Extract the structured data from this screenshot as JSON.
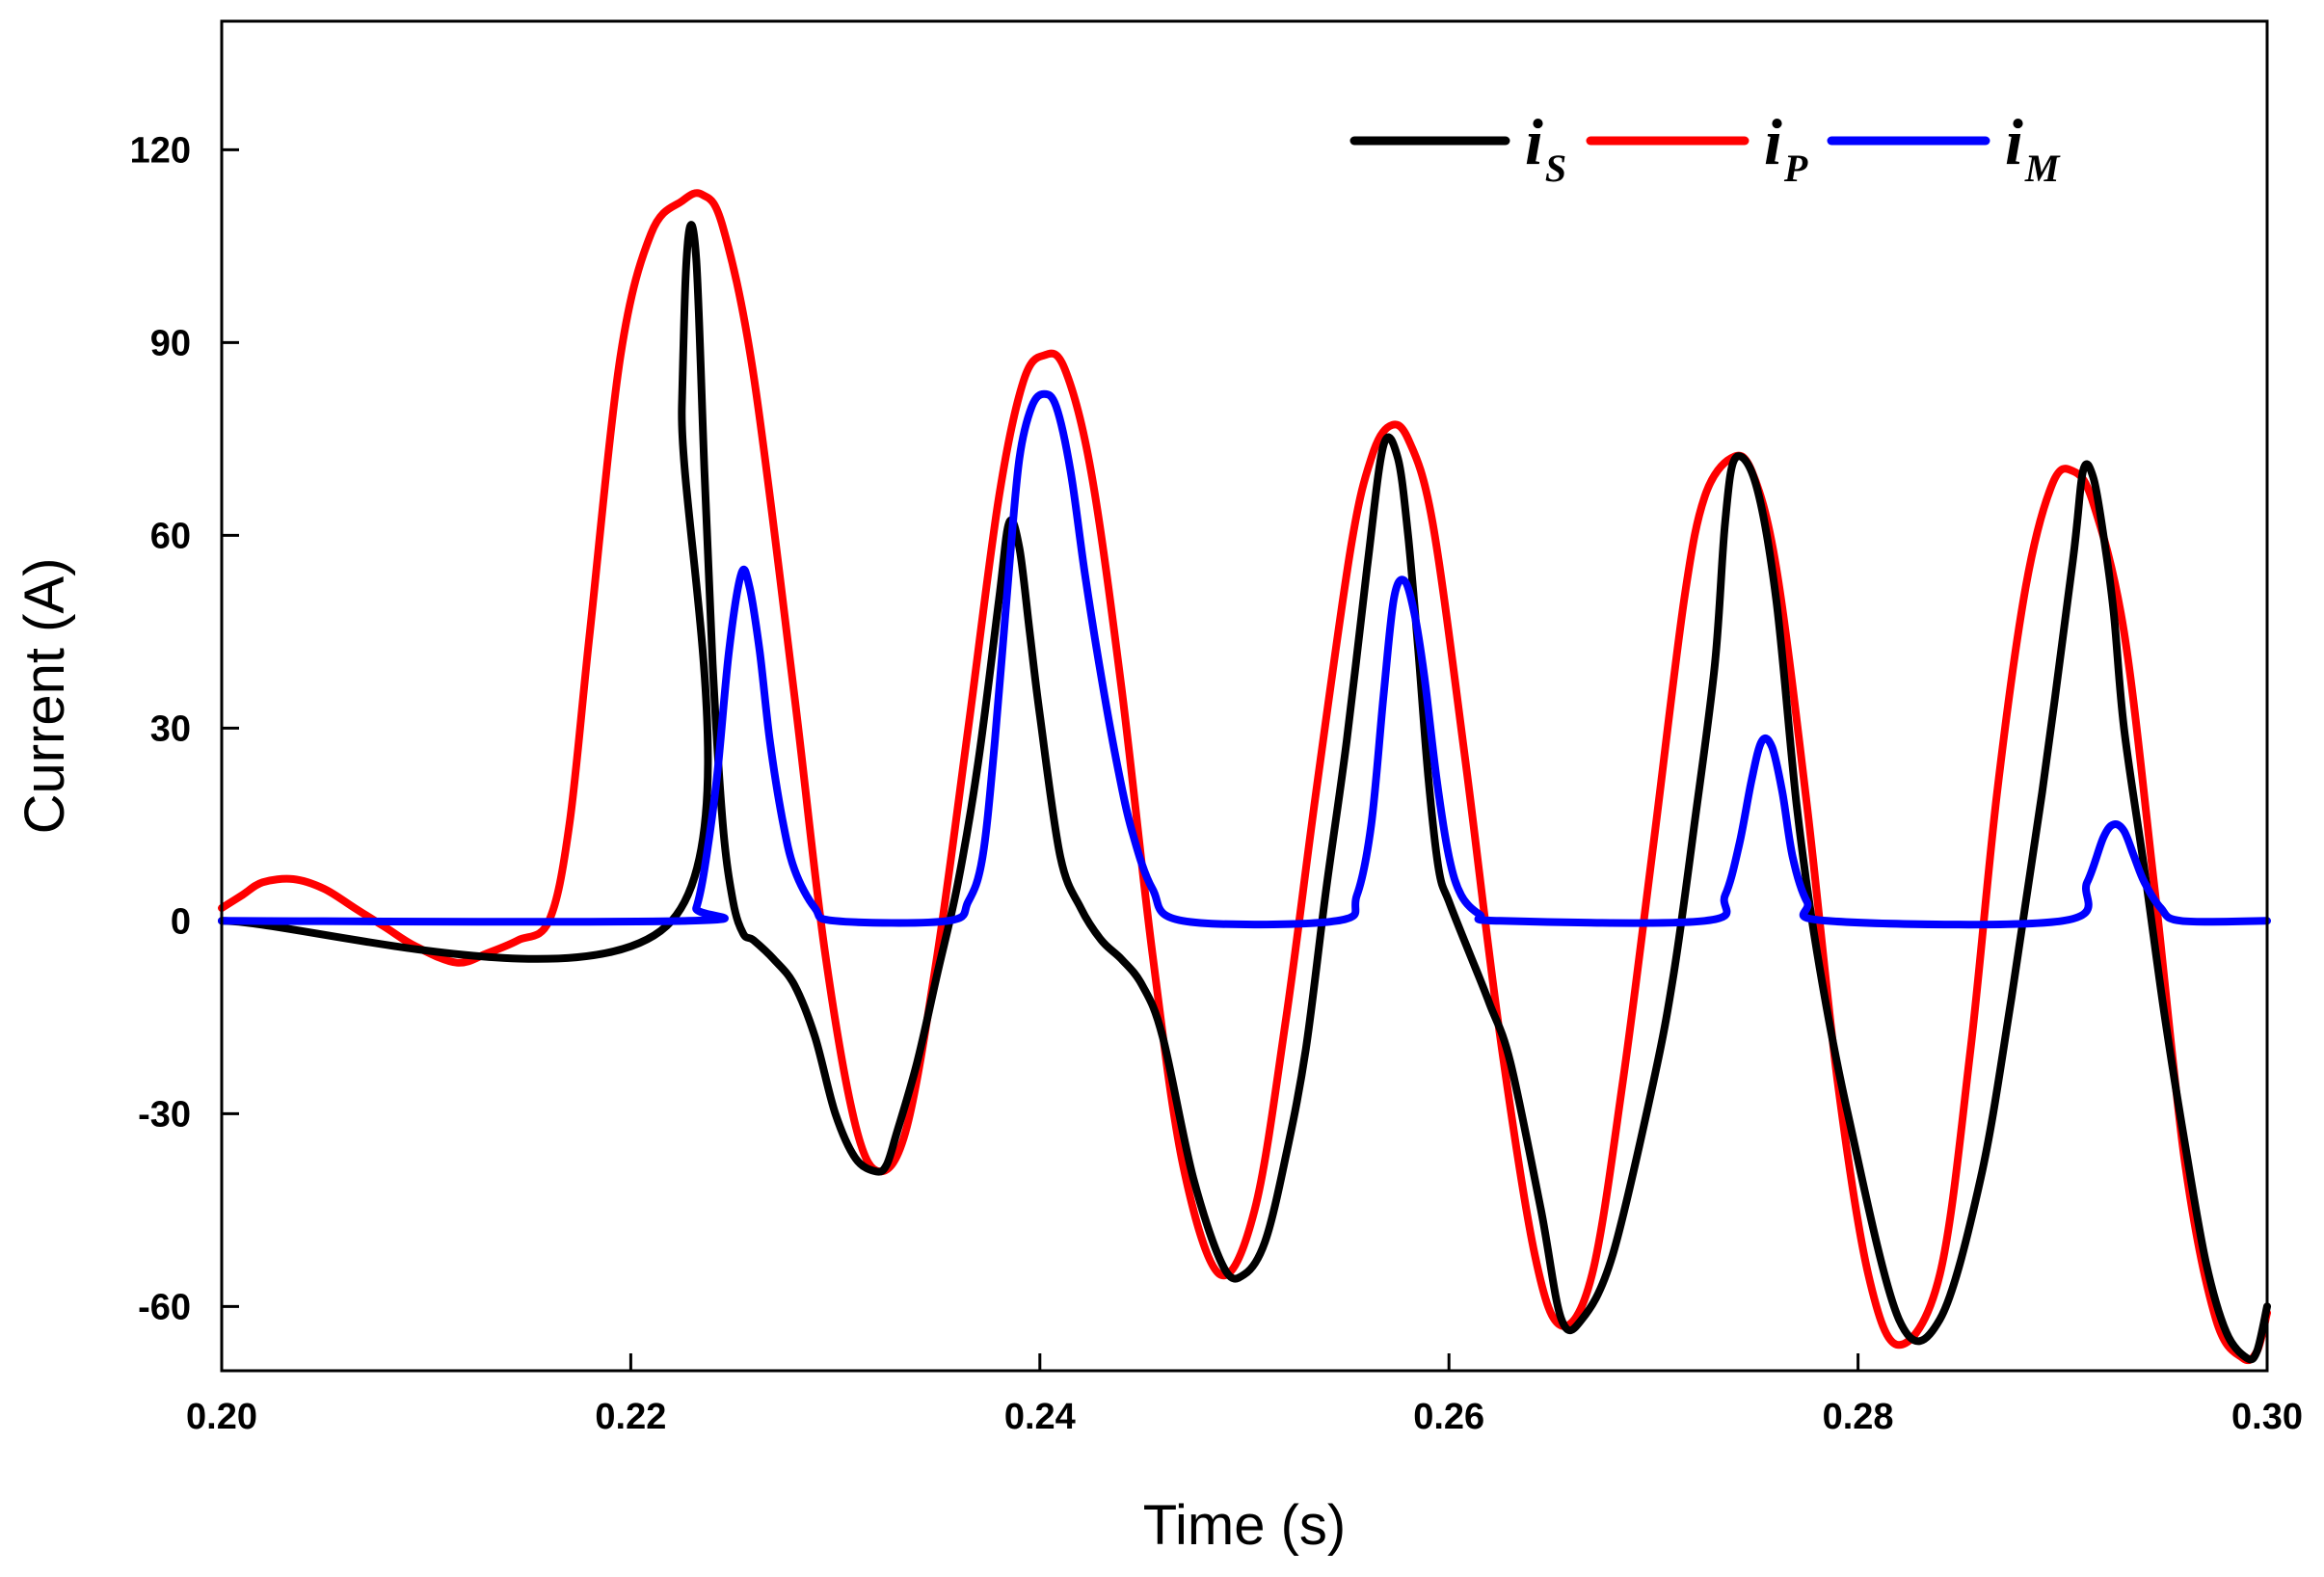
{
  "chart_data": {
    "type": "line",
    "title": "",
    "xlabel": "Time (s)",
    "ylabel": "Current (A)",
    "xlim": [
      0.2,
      0.3
    ],
    "ylim": [
      -70,
      140
    ],
    "xticks": [
      0.2,
      0.22,
      0.24,
      0.26,
      0.28,
      0.3
    ],
    "xtick_labels": [
      "0.20",
      "0.22",
      "0.24",
      "0.26",
      "0.28",
      "0.30"
    ],
    "yticks": [
      -60,
      -30,
      0,
      30,
      60,
      90,
      120
    ],
    "ytick_labels": [
      "-60",
      "-30",
      "0",
      "30",
      "60",
      "90",
      "120"
    ],
    "grid": false,
    "legend": "top-right",
    "series": [
      {
        "name": "iS",
        "label_main": "i",
        "label_sub": "S",
        "color": "#000000",
        "x": [
          0.2,
          0.222,
          0.2225,
          0.2228,
          0.2232,
          0.2236,
          0.224,
          0.2245,
          0.225,
          0.2255,
          0.226,
          0.227,
          0.228,
          0.229,
          0.23,
          0.231,
          0.232,
          0.2325,
          0.233,
          0.234,
          0.235,
          0.236,
          0.237,
          0.238,
          0.2385,
          0.239,
          0.2395,
          0.24,
          0.241,
          0.242,
          0.243,
          0.244,
          0.245,
          0.246,
          0.2475,
          0.249,
          0.25,
          0.251,
          0.252,
          0.253,
          0.254,
          0.255,
          0.256,
          0.2568,
          0.2575,
          0.258,
          0.2585,
          0.259,
          0.2595,
          0.26,
          0.261,
          0.262,
          0.263,
          0.2645,
          0.2655,
          0.2665,
          0.268,
          0.27,
          0.271,
          0.272,
          0.273,
          0.2735,
          0.274,
          0.275,
          0.276,
          0.277,
          0.278,
          0.2795,
          0.282,
          0.284,
          0.286,
          0.2875,
          0.289,
          0.2905,
          0.291,
          0.2915,
          0.292,
          0.2925,
          0.293,
          0.294,
          0.295,
          0.296,
          0.297,
          0.298,
          0.299,
          0.2995,
          0.3
        ],
        "y": [
          0,
          0,
          80,
          106,
          103,
          70,
          40,
          15,
          3,
          -2,
          -3,
          -6,
          -10,
          -18,
          -30,
          -37,
          -39,
          -38,
          -33,
          -22,
          -8,
          6,
          25,
          50,
          62,
          58,
          45,
          32,
          10,
          2,
          -3,
          -6,
          -10,
          -18,
          -40,
          -54,
          -55,
          -50,
          -37,
          -20,
          5,
          28,
          55,
          74,
          72,
          60,
          42,
          22,
          8,
          3,
          -5,
          -13,
          -22,
          -45,
          -62,
          -62,
          -52,
          -25,
          -8,
          15,
          40,
          62,
          72,
          68,
          50,
          18,
          -5,
          -30,
          -62,
          -62,
          -40,
          -12,
          20,
          56,
          70,
          69,
          60,
          48,
          30,
          8,
          -15,
          -35,
          -53,
          -64,
          -68,
          -67,
          -60
        ]
      },
      {
        "name": "iP",
        "label_main": "i",
        "label_sub": "P",
        "color": "#ff0000",
        "x": [
          0.2,
          0.201,
          0.202,
          0.2035,
          0.205,
          0.2065,
          0.208,
          0.2095,
          0.2115,
          0.213,
          0.2145,
          0.216,
          0.217,
          0.218,
          0.2195,
          0.221,
          0.2225,
          0.2235,
          0.2245,
          0.226,
          0.228,
          0.2295,
          0.231,
          0.2322,
          0.2335,
          0.235,
          0.2365,
          0.238,
          0.2392,
          0.2402,
          0.2412,
          0.2425,
          0.244,
          0.2455,
          0.247,
          0.2488,
          0.2505,
          0.252,
          0.2535,
          0.2552,
          0.2562,
          0.2571,
          0.258,
          0.2592,
          0.2608,
          0.2625,
          0.2642,
          0.2655,
          0.267,
          0.2685,
          0.27,
          0.2715,
          0.2725,
          0.2738,
          0.2748,
          0.276,
          0.2775,
          0.279,
          0.2805,
          0.282,
          0.284,
          0.2855,
          0.2868,
          0.2882,
          0.2895,
          0.2905,
          0.2915,
          0.293,
          0.2945,
          0.296,
          0.2975,
          0.2988,
          0.2995,
          0.3
        ],
        "y": [
          2,
          4,
          6,
          6.5,
          5,
          2,
          -1,
          -4,
          -6.5,
          -5,
          -3,
          0,
          15,
          45,
          88,
          107,
          112,
          113,
          108,
          85,
          35,
          -5,
          -32,
          -39,
          -32,
          -5,
          30,
          66,
          84,
          88,
          86,
          70,
          36,
          -5,
          -38,
          -55,
          -45,
          -16,
          20,
          58,
          72,
          77,
          75,
          62,
          25,
          -18,
          -52,
          -63,
          -55,
          -25,
          12,
          50,
          66,
          72,
          70,
          55,
          18,
          -25,
          -55,
          -66,
          -55,
          -20,
          20,
          52,
          68,
          70,
          65,
          45,
          5,
          -38,
          -62,
          -68,
          -67,
          -61
        ]
      },
      {
        "name": "iM",
        "label_main": "i",
        "label_sub": "M",
        "color": "#0000ff",
        "x": [
          0.2,
          0.2228,
          0.2232,
          0.2236,
          0.2242,
          0.2248,
          0.2254,
          0.2258,
          0.2263,
          0.2268,
          0.2274,
          0.228,
          0.229,
          0.23,
          0.2355,
          0.2365,
          0.2372,
          0.2378,
          0.2385,
          0.239,
          0.2396,
          0.2402,
          0.2408,
          0.2415,
          0.2422,
          0.243,
          0.2438,
          0.2445,
          0.2455,
          0.247,
          0.2545,
          0.2555,
          0.2562,
          0.2568,
          0.2573,
          0.2578,
          0.2583,
          0.2588,
          0.2594,
          0.26,
          0.2606,
          0.2615,
          0.2625,
          0.2725,
          0.2735,
          0.2742,
          0.2748,
          0.2753,
          0.2758,
          0.2763,
          0.2768,
          0.2775,
          0.2785,
          0.29,
          0.2912,
          0.292,
          0.2925,
          0.293,
          0.2935,
          0.294,
          0.2948,
          0.2958,
          0.3
        ],
        "y": [
          0,
          0,
          2,
          8,
          22,
          42,
          54,
          52,
          42,
          28,
          16,
          8,
          2,
          0,
          0,
          3,
          10,
          28,
          55,
          72,
          80,
          82,
          80,
          70,
          54,
          38,
          24,
          14,
          5,
          0,
          0,
          4,
          15,
          35,
          50,
          53,
          48,
          38,
          22,
          10,
          4,
          1,
          0,
          0,
          4,
          12,
          22,
          28,
          27,
          20,
          10,
          3,
          0,
          0,
          6,
          13,
          15,
          14,
          10,
          6,
          2,
          0,
          0
        ]
      }
    ]
  }
}
